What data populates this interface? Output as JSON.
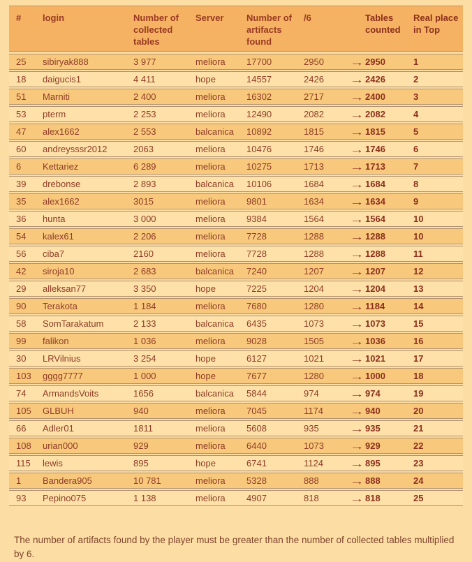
{
  "colors": {
    "page_bg": "#fcdda3",
    "header_bg": "#f5b262",
    "row_dark_bg": "#f8c97d",
    "row_light_bg": "#fde1a9",
    "text": "#8e3c26",
    "bold_value_text": "#8c301c",
    "separator": "#b0916e"
  },
  "icons": {
    "arrow_right": "→"
  },
  "chart_data": {
    "type": "table",
    "columns": [
      "#",
      "login",
      "Number of collected tables",
      "Server",
      "Number of artifacts found",
      "/6",
      "Tables counted",
      "Real place in Top"
    ],
    "rows": [
      [
        "25",
        "sibiryak888",
        "3 977",
        "meliora",
        "17700",
        "2950",
        "2950",
        "1"
      ],
      [
        "18",
        "daigucis1",
        "4 411",
        "hope",
        "14557",
        "2426",
        "2426",
        "2"
      ],
      [
        "51",
        "Marniti",
        "2 400",
        "meliora",
        "16302",
        "2717",
        "2400",
        "3"
      ],
      [
        "53",
        "pterm",
        "2 253",
        "meliora",
        "12490",
        "2082",
        "2082",
        "4"
      ],
      [
        "47",
        "alex1662",
        "2 553",
        "balcanica",
        "10892",
        "1815",
        "1815",
        "5"
      ],
      [
        "60",
        "andreysssr2012",
        "2063",
        "meliora",
        "10476",
        "1746",
        "1746",
        "6"
      ],
      [
        "6",
        "Kettariez",
        "6 289",
        "meliora",
        "10275",
        "1713",
        "1713",
        "7"
      ],
      [
        "39",
        "drebonse",
        "2 893",
        "balcanica",
        "10106",
        "1684",
        "1684",
        "8"
      ],
      [
        "35",
        "alex1662",
        "3015",
        "meliora",
        "9801",
        "1634",
        "1634",
        "9"
      ],
      [
        "36",
        "hunta",
        "3 000",
        "meliora",
        "9384",
        "1564",
        "1564",
        "10"
      ],
      [
        "54",
        "kalex61",
        "2 206",
        "meliora",
        "7728",
        "1288",
        "1288",
        "10"
      ],
      [
        "56",
        "ciba7",
        "2160",
        "meliora",
        "7728",
        "1288",
        "1288",
        "11"
      ],
      [
        "42",
        "siroja10",
        "2 683",
        "balcanica",
        "7240",
        "1207",
        "1207",
        "12"
      ],
      [
        "29",
        "alleksan77",
        "3 350",
        "hope",
        "7225",
        "1204",
        "1204",
        "13"
      ],
      [
        "90",
        "Terakota",
        "1 184",
        "meliora",
        "7680",
        "1280",
        "1184",
        "14"
      ],
      [
        "58",
        "SomTarakatum",
        "2 133",
        "balcanica",
        "6435",
        "1073",
        "1073",
        "15"
      ],
      [
        "99",
        "falikon",
        "1 036",
        "meliora",
        "9028",
        "1505",
        "1036",
        "16"
      ],
      [
        "30",
        "LRVilnius",
        "3 254",
        "hope",
        "6127",
        "1021",
        "1021",
        "17"
      ],
      [
        "103",
        "gggg7777",
        "1 000",
        "hope",
        "7677",
        "1280",
        "1000",
        "18"
      ],
      [
        "74",
        "ArmandsVoits",
        "1656",
        "balcanica",
        "5844",
        "974",
        "974",
        "19"
      ],
      [
        "105",
        "GLBUH",
        "940",
        "meliora",
        "7045",
        "1174",
        "940",
        "20"
      ],
      [
        "66",
        "Adler01",
        "1811",
        "meliora",
        "5608",
        "935",
        "935",
        "21"
      ],
      [
        "108",
        "urian000",
        "929",
        "meliora",
        "6440",
        "1073",
        "929",
        "22"
      ],
      [
        "115",
        "lewis",
        "895",
        "hope",
        "6741",
        "1124",
        "895",
        "23"
      ],
      [
        "1",
        "Bandera905",
        "10 781",
        "meliora",
        "5328",
        "888",
        "888",
        "24"
      ],
      [
        "93",
        "Pepino075",
        "1 138",
        "meliora",
        "4907",
        "818",
        "818",
        "25"
      ]
    ],
    "footnote": "The number of artifacts found by the player must be greater than the number of collected tables multiplied by 6."
  }
}
